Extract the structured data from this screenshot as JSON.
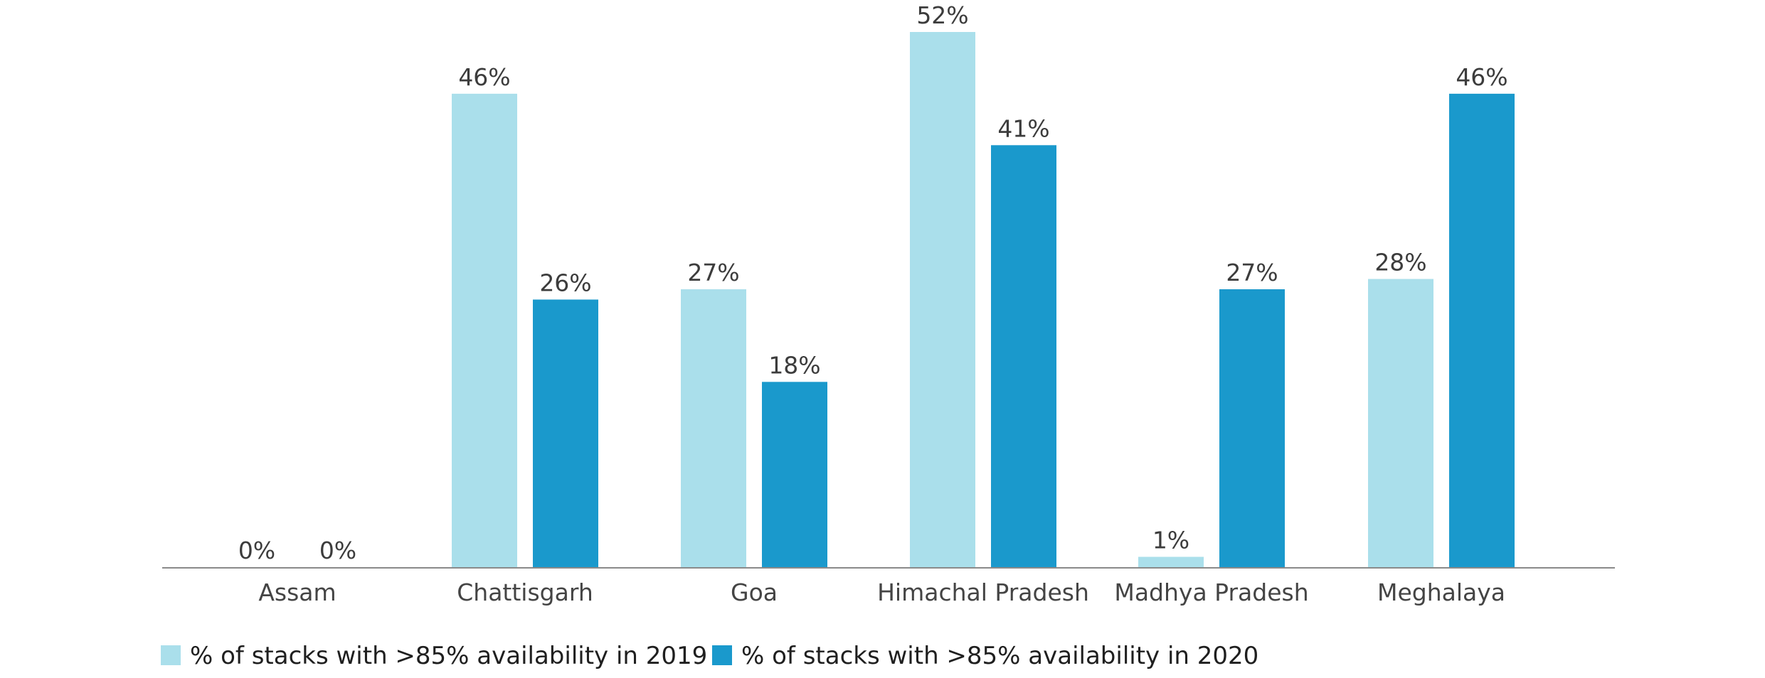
{
  "chart_data": {
    "type": "bar",
    "categories": [
      "Assam",
      "Chattisgarh",
      "Goa",
      "Himachal Pradesh",
      "Madhya Pradesh",
      "Meghalaya"
    ],
    "series": [
      {
        "name": "% of stacks with >85% availability in 2019",
        "values": [
          0,
          46,
          27,
          52,
          1,
          28
        ],
        "labels": [
          "0%",
          "46%",
          "27%",
          "52%",
          "1%",
          "28%"
        ],
        "color": "#aadfeb"
      },
      {
        "name": "% of stacks with >85% availability in 2020",
        "values": [
          0,
          26,
          18,
          41,
          27,
          46
        ],
        "labels": [
          "0%",
          "26%",
          "18%",
          "41%",
          "27%",
          "46%"
        ],
        "color": "#1a99cc"
      }
    ],
    "title": "",
    "xlabel": "",
    "ylabel": "",
    "ylim": [
      0,
      52
    ],
    "grid": false,
    "legend": "bottom-left",
    "axis_color": "#8a8a8a"
  }
}
